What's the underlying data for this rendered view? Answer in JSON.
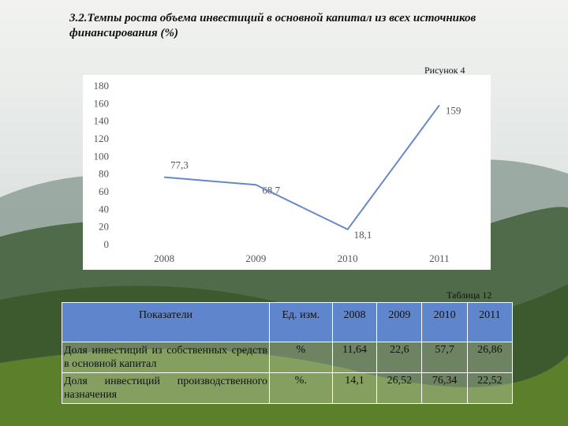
{
  "title": "3.2.Темпы роста объема инвестиций в основной капитал из всех источников финансирования (%)",
  "figure_label": "Рисунок 4",
  "chart_data": {
    "type": "line",
    "categories": [
      "2008",
      "2009",
      "2010",
      "2011"
    ],
    "values": [
      77.3,
      68.7,
      18.1,
      159
    ],
    "value_labels": [
      "77,3",
      "68,7",
      "18,1",
      "159"
    ],
    "color": "#6688c8",
    "ylim": [
      0,
      180
    ],
    "yticks": [
      0,
      20,
      40,
      60,
      80,
      100,
      120,
      140,
      160,
      180
    ]
  },
  "table_label": "Таблица 12",
  "table": {
    "header": [
      "Показатели",
      "Ед. изм.",
      "2008",
      "2009",
      "2010",
      "2011"
    ],
    "rows": [
      [
        "Доля инвестиций из собственных средств в основной капитал",
        "%",
        "11,64",
        "22,6",
        "57,7",
        "26,86"
      ],
      [
        "Доля инвестиций производственного назначения",
        "%.",
        "14,1",
        "26,52",
        "76,34",
        "22,52"
      ]
    ]
  }
}
